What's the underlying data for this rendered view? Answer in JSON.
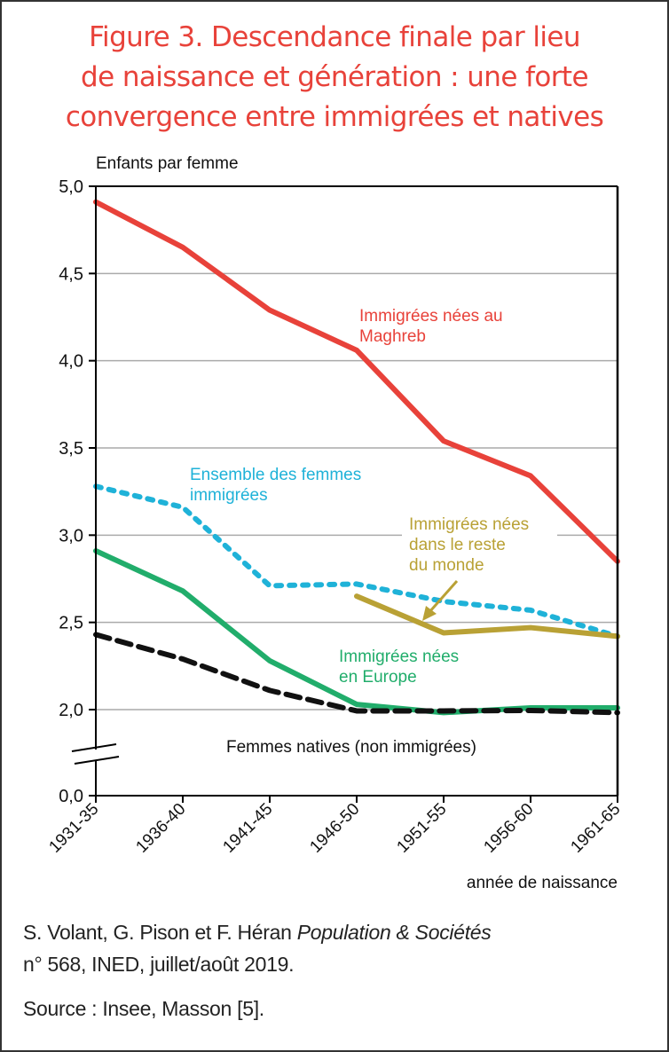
{
  "title_lines": [
    "Figure 3. Descendance finale par lieu",
    "de naissance et génération : une forte",
    "convergence entre immigrées et natives"
  ],
  "footer": {
    "citation_authors": "S. Volant, G. Pison et F. Héran ",
    "citation_journal": "Population & Sociétés",
    "citation_line2": "n° 568, INED, juillet/août 2019.",
    "source": "Source : Insee, Masson [5]."
  },
  "chart_data": {
    "type": "line",
    "title": "Figure 3. Descendance finale par lieu de naissance et génération : une forte convergence entre immigrées et natives",
    "xlabel": "année de naissance",
    "ylabel": "Enfants par femme",
    "categories": [
      "1931-35",
      "1936-40",
      "1941-45",
      "1946-50",
      "1951-55",
      "1956-60",
      "1961-65"
    ],
    "yticks": [
      {
        "value": 5.0,
        "label": "5,0"
      },
      {
        "value": 4.5,
        "label": "4,5"
      },
      {
        "value": 4.0,
        "label": "4,0"
      },
      {
        "value": 3.5,
        "label": "3,5"
      },
      {
        "value": 3.0,
        "label": "3,0"
      },
      {
        "value": 2.5,
        "label": "2,5"
      },
      {
        "value": 2.0,
        "label": "2,0"
      },
      {
        "value": 0.0,
        "label": "0,0"
      }
    ],
    "ylim": [
      0,
      5
    ],
    "axis_break": "between 0,0 and 2,0",
    "grid": true,
    "series": [
      {
        "name": "Immigrées nées au Maghreb",
        "label_lines": [
          "Immigrées nées au",
          "Maghreb"
        ],
        "color": "#e8423a",
        "style": "solid",
        "values": [
          4.91,
          4.65,
          4.29,
          4.06,
          3.54,
          3.34,
          2.85
        ]
      },
      {
        "name": "Ensemble des femmes immigrées",
        "label_lines": [
          "Ensemble des femmes",
          "immigrées"
        ],
        "color": "#1fb2d8",
        "style": "dotted",
        "values": [
          3.28,
          3.16,
          2.71,
          2.72,
          2.62,
          2.57,
          2.42
        ]
      },
      {
        "name": "Immigrées nées dans le reste du monde",
        "label_lines": [
          "Immigrées nées",
          "dans le reste",
          "du monde"
        ],
        "color": "#b9a135",
        "style": "solid",
        "values": [
          null,
          null,
          null,
          2.65,
          2.44,
          2.47,
          2.42
        ]
      },
      {
        "name": "Immigrées nées en Europe",
        "label_lines": [
          "Immigrées nées",
          "en Europe"
        ],
        "color": "#21ad6b",
        "style": "solid",
        "values": [
          2.91,
          2.68,
          2.28,
          2.03,
          1.93,
          2.01,
          2.01
        ]
      },
      {
        "name": "Femmes natives (non immigrées)",
        "label_lines": [
          "Femmes natives (non immigrées)"
        ],
        "color": "#111111",
        "style": "dashed",
        "values": [
          2.43,
          2.29,
          2.11,
          1.97,
          1.97,
          1.98,
          1.93
        ]
      }
    ]
  }
}
